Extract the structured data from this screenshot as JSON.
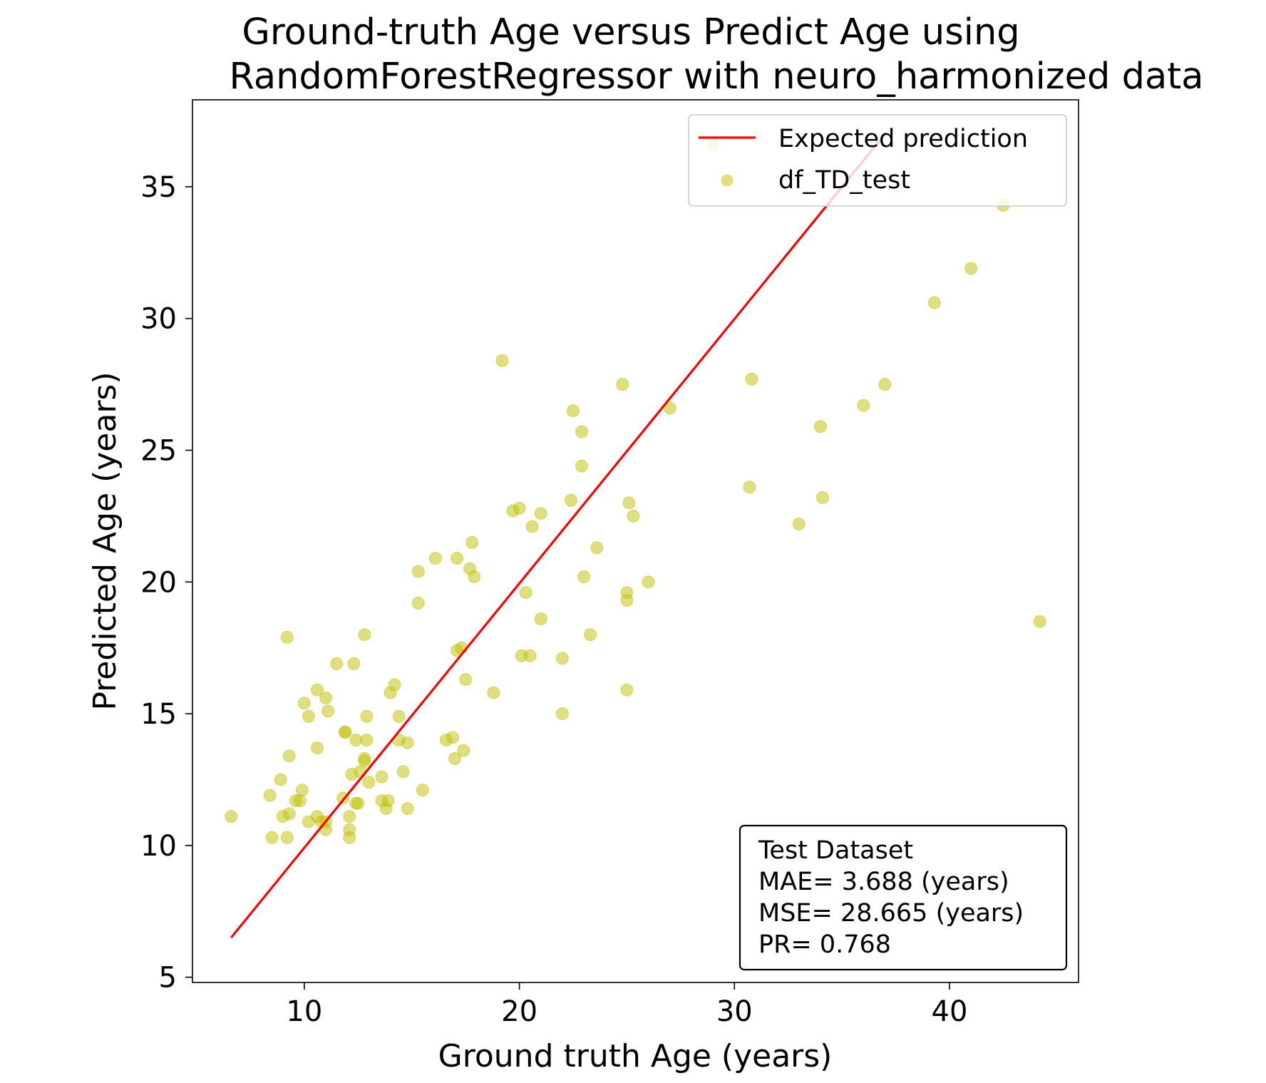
{
  "chart_data": {
    "type": "scatter",
    "title_lines": [
      "Ground-truth Age versus Predict Age using",
      "RandomForestRegressor  with neuro_harmonized data"
    ],
    "xlabel": "Ground truth Age (years)",
    "ylabel": "Predicted Age (years)",
    "xlim": [
      4.8,
      46.0
    ],
    "ylim": [
      4.8,
      38.3
    ],
    "xticks": [
      10,
      20,
      30,
      40
    ],
    "yticks": [
      5,
      10,
      15,
      20,
      25,
      30,
      35
    ],
    "grid": false,
    "legend_position": "upper right",
    "series": [
      {
        "name": "Expected prediction",
        "kind": "line",
        "color": "#ff0000",
        "x": [
          6.6,
          36.9
        ],
        "y": [
          6.5,
          36.9
        ]
      },
      {
        "name": "df_TD_test",
        "kind": "scatter",
        "color": "#bfbf00",
        "opacity": 0.5,
        "x": [
          6.6,
          8.4,
          8.5,
          8.9,
          9.0,
          9.2,
          9.3,
          9.3,
          9.2,
          9.6,
          9.8,
          9.9,
          10.0,
          10.2,
          10.2,
          10.6,
          10.6,
          10.6,
          10.8,
          11.0,
          11.0,
          11.1,
          11.0,
          11.5,
          11.8,
          11.9,
          11.9,
          12.1,
          12.1,
          12.1,
          12.2,
          12.3,
          12.4,
          12.5,
          12.4,
          12.6,
          12.8,
          12.8,
          12.8,
          12.9,
          12.9,
          13.0,
          13.6,
          13.6,
          13.8,
          13.9,
          14.0,
          14.2,
          14.4,
          14.4,
          14.6,
          14.8,
          14.8,
          15.3,
          15.3,
          15.5,
          16.1,
          16.6,
          16.9,
          17.0,
          17.1,
          17.1,
          17.3,
          17.4,
          17.5,
          17.7,
          17.8,
          17.9,
          18.8,
          19.2,
          19.7,
          20.0,
          20.1,
          20.3,
          20.5,
          20.6,
          21.0,
          21.0,
          22.0,
          22.0,
          22.4,
          22.5,
          22.9,
          22.9,
          23.0,
          23.3,
          23.6,
          24.8,
          25.0,
          25.0,
          25.0,
          25.1,
          25.3,
          26.0,
          27.0,
          29.0,
          30.7,
          30.8,
          33.0,
          34.0,
          34.1,
          36.0,
          37.0,
          39.3,
          41.0,
          42.5,
          44.2
        ],
        "y": [
          11.1,
          11.9,
          10.3,
          12.5,
          11.1,
          17.9,
          13.4,
          11.2,
          10.3,
          11.7,
          11.7,
          12.1,
          15.4,
          14.9,
          10.9,
          15.9,
          13.7,
          11.1,
          10.9,
          10.6,
          15.6,
          15.1,
          10.9,
          16.9,
          11.8,
          14.3,
          14.3,
          10.6,
          10.3,
          11.1,
          12.7,
          16.9,
          14.0,
          11.6,
          11.6,
          12.8,
          18.0,
          13.3,
          13.2,
          14.9,
          14.0,
          12.4,
          12.6,
          11.7,
          11.4,
          11.7,
          15.8,
          16.1,
          14.9,
          14.0,
          12.8,
          11.4,
          13.9,
          20.4,
          19.2,
          12.1,
          20.9,
          14.0,
          14.1,
          13.3,
          20.9,
          17.4,
          17.5,
          13.6,
          16.3,
          20.5,
          21.5,
          20.2,
          15.8,
          28.4,
          22.7,
          22.8,
          17.2,
          19.6,
          17.2,
          22.1,
          18.6,
          22.6,
          17.1,
          15.0,
          23.1,
          26.5,
          24.4,
          25.7,
          20.2,
          18.0,
          21.3,
          27.5,
          19.6,
          19.3,
          15.9,
          23.0,
          22.5,
          20.0,
          26.6,
          36.6,
          23.6,
          27.7,
          22.2,
          25.9,
          23.2,
          26.7,
          27.5,
          30.6,
          31.9,
          34.3,
          18.5
        ]
      }
    ],
    "annotation": {
      "lines": [
        "Test Dataset",
        "MAE= 3.688 (years)",
        "MSE= 28.665 (years)",
        "PR= 0.768"
      ]
    }
  }
}
